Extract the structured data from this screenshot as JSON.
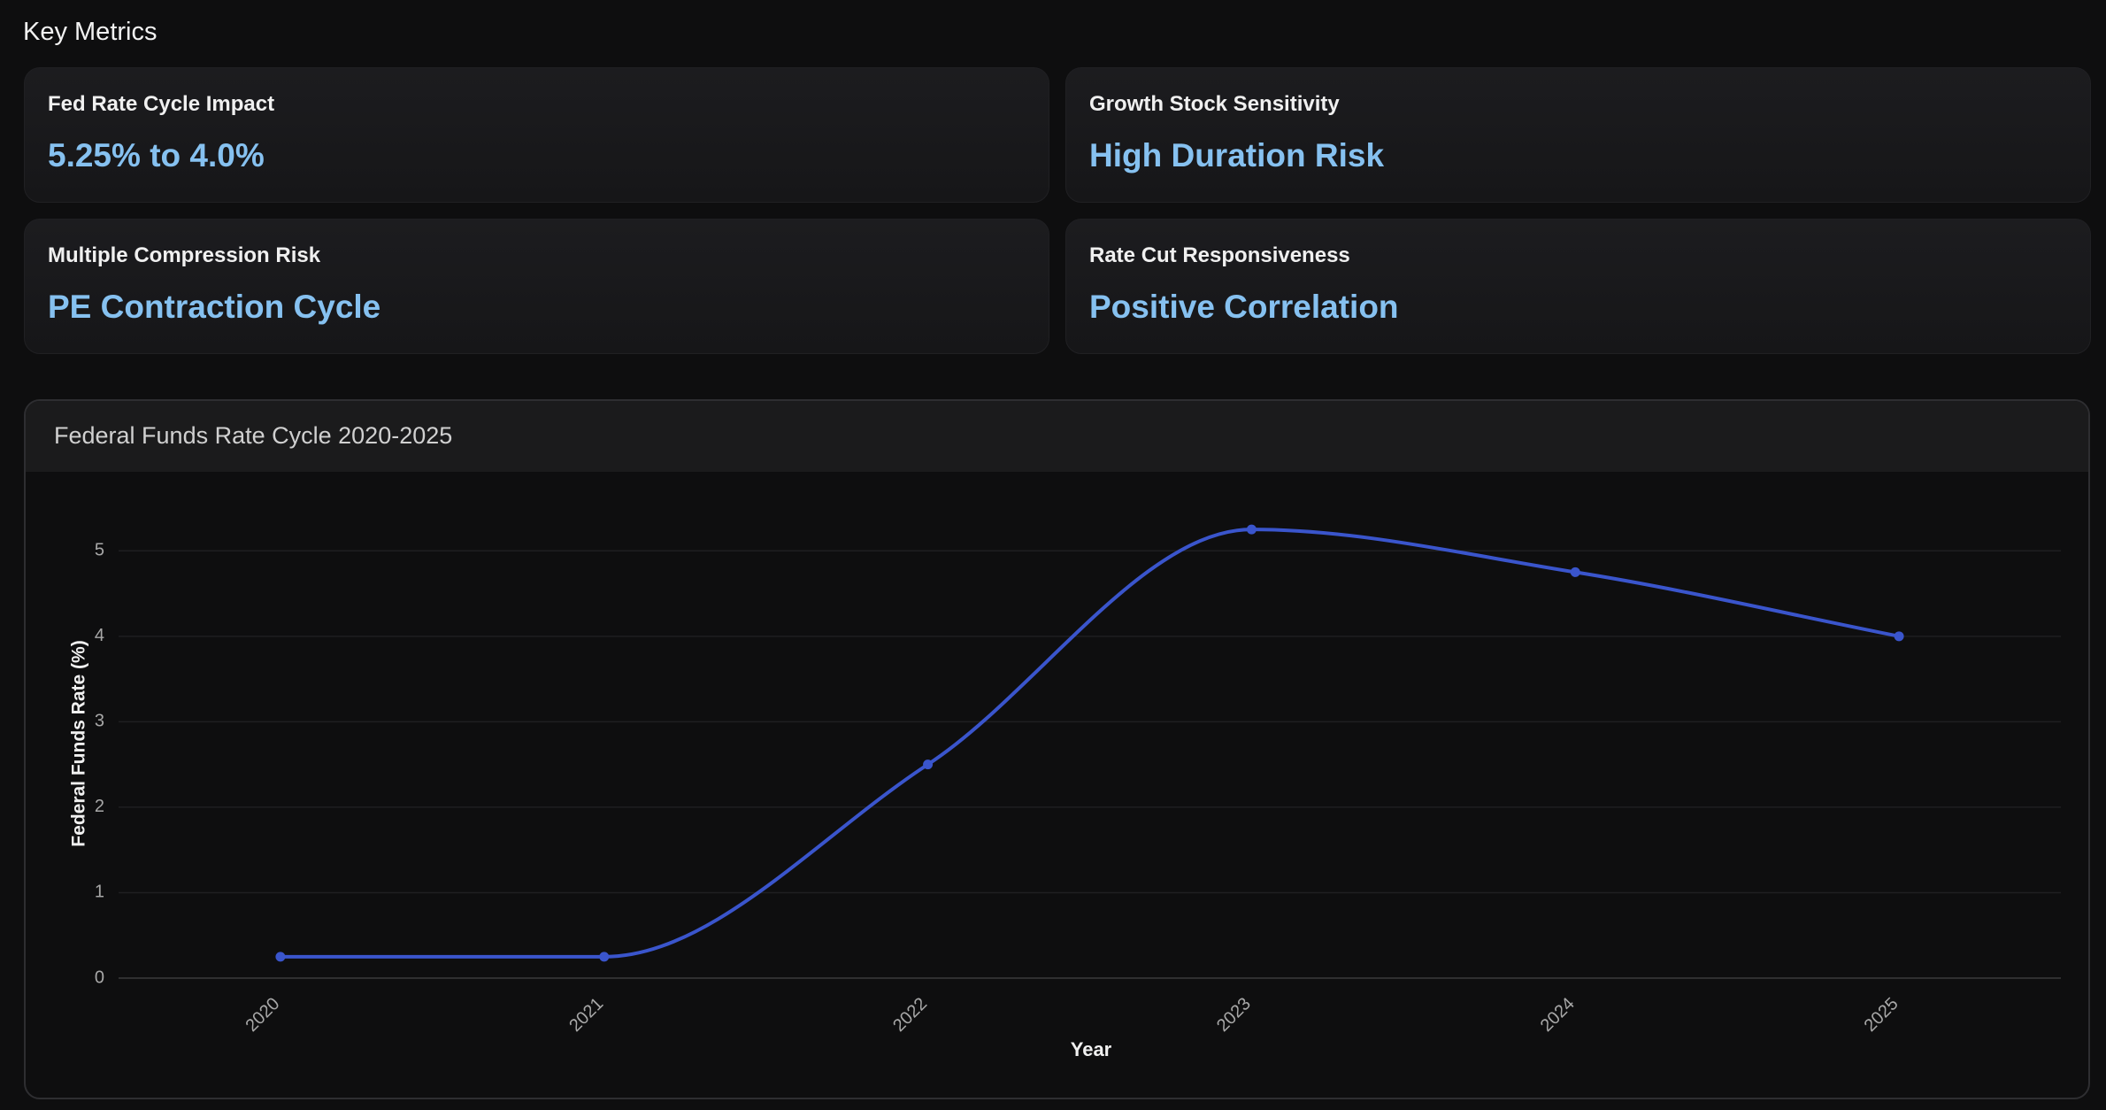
{
  "header": {
    "title": "Key Metrics"
  },
  "metrics": [
    {
      "label": "Fed Rate Cycle Impact",
      "value": "5.25% to 4.0%"
    },
    {
      "label": "Growth Stock Sensitivity",
      "value": "High Duration Risk"
    },
    {
      "label": "Multiple Compression Risk",
      "value": "PE Contraction Cycle"
    },
    {
      "label": "Rate Cut Responsiveness",
      "value": "Positive Correlation"
    }
  ],
  "chart_data": {
    "type": "line",
    "title": "Federal Funds Rate Cycle 2020-2025",
    "x_label": "Year",
    "y_label": "Federal Funds Rate (%)",
    "categories": [
      "2020",
      "2021",
      "2022",
      "2023",
      "2024",
      "2025"
    ],
    "values": [
      0.25,
      0.25,
      2.5,
      5.25,
      4.75,
      4.0
    ],
    "color": "#3a55cc",
    "ylim": [
      0,
      5.5
    ],
    "yticks": [
      0,
      1,
      2,
      3,
      4,
      5
    ],
    "grid": true
  }
}
